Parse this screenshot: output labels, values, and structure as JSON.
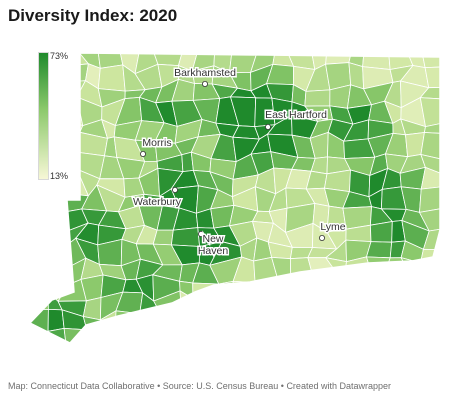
{
  "title": "Diversity Index: 2020",
  "legend": {
    "max_label": "73%",
    "min_label": "13%",
    "min_value": 13,
    "max_value": 73,
    "color_low": "#f7f7d6",
    "color_high": "#1f8a2c"
  },
  "cities": [
    {
      "name": "Barkhamsted"
    },
    {
      "name": "East Hartford"
    },
    {
      "name": "Morris"
    },
    {
      "name": "Waterbury"
    },
    {
      "name": "New Haven"
    },
    {
      "name": "Lyme"
    }
  ],
  "footer": "Map: Connecticut Data Collaborative • Source: U.S. Census Bureau • Created with Datawrapper"
}
